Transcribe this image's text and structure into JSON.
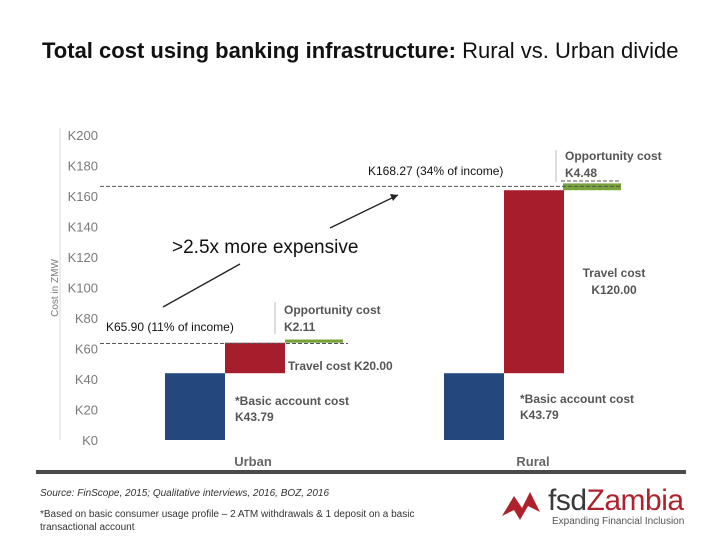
{
  "title": {
    "bold": "Total cost using banking infrastructure:",
    "rest": " Rural vs. Urban divide"
  },
  "chart_data": {
    "type": "bar",
    "stacked": true,
    "ylabel": "Cost in ZMW",
    "ylim": [
      0,
      200
    ],
    "yticks": [
      {
        "v": 0,
        "label": "K0"
      },
      {
        "v": 20,
        "label": "K20"
      },
      {
        "v": 40,
        "label": "K40"
      },
      {
        "v": 60,
        "label": "K60"
      },
      {
        "v": 80,
        "label": "K80"
      },
      {
        "v": 100,
        "label": "K100"
      },
      {
        "v": 120,
        "label": "K120"
      },
      {
        "v": 140,
        "label": "K140"
      },
      {
        "v": 160,
        "label": "K160"
      },
      {
        "v": 180,
        "label": "K180"
      },
      {
        "v": 200,
        "label": "K200"
      }
    ],
    "categories": [
      "Urban",
      "Rural"
    ],
    "series": [
      {
        "name": "*Basic account cost",
        "values": [
          43.79,
          43.79
        ],
        "color": "#24477d"
      },
      {
        "name": "Travel cost",
        "values": [
          20.0,
          120.0
        ],
        "color": "#a61e2b"
      },
      {
        "name": "Opportunity cost",
        "values": [
          2.11,
          4.48
        ],
        "color": "#78a23a"
      }
    ],
    "totals": [
      65.9,
      168.27
    ],
    "annotations": {
      "urban_basic": [
        "*Basic account cost",
        "K43.79"
      ],
      "urban_travel": "Travel cost K20.00",
      "urban_opp": [
        "Opportunity cost",
        "K2.11"
      ],
      "urban_total": "K65.90 (11% of income)",
      "rural_basic": [
        "*Basic account cost",
        "K43.79"
      ],
      "rural_travel": [
        "Travel cost",
        "K120.00"
      ],
      "rural_opp": [
        "Opportunity cost",
        "K4.48"
      ],
      "rural_total": "K168.27 (34% of income)",
      "comparison": ">2.5x more expensive"
    },
    "grid": false
  },
  "footer": {
    "source": "Source: FinScope, 2015; Qualitative interviews, 2016, BOZ, 2016",
    "footnote": "*Based on basic consumer usage profile – 2 ATM withdrawals & 1 deposit on a basic transactional account"
  },
  "logo": {
    "name_part1": "fsd",
    "name_part2": "Zambia",
    "tagline": "Expanding Financial Inclusion",
    "colors": {
      "brand": "#b0222b",
      "dark": "#3a3a3a"
    }
  }
}
